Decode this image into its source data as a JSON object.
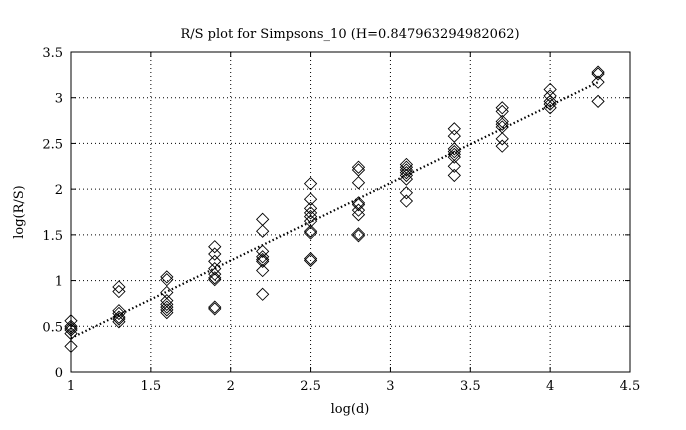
{
  "chart_data": {
    "type": "scatter",
    "title": "R/S plot for Simpsons_10 (H=0.847963294982062)",
    "xlabel": "log(d)",
    "ylabel": "log(R/S)",
    "xlim": [
      1,
      4.5
    ],
    "ylim": [
      0,
      3.5
    ],
    "xticks": [
      "1",
      "1.5",
      "2",
      "2.5",
      "3",
      "3.5",
      "4",
      "4.5"
    ],
    "yticks": [
      "0",
      "0.5",
      "1",
      "1.5",
      "2",
      "2.5",
      "3",
      "3.5"
    ],
    "grid": true,
    "marker": "diamond",
    "fit_line": {
      "style": "dotted",
      "x": [
        1,
        4.3
      ],
      "y": [
        0.37,
        3.17
      ]
    },
    "series": [
      {
        "points": [
          [
            1.0,
            0.56
          ],
          [
            1.0,
            0.5
          ],
          [
            1.0,
            0.48
          ],
          [
            1.0,
            0.46
          ],
          [
            1.0,
            0.42
          ],
          [
            1.0,
            0.28
          ],
          [
            1.3,
            0.93
          ],
          [
            1.3,
            0.88
          ],
          [
            1.3,
            0.67
          ],
          [
            1.3,
            0.64
          ],
          [
            1.3,
            0.6
          ],
          [
            1.3,
            0.58
          ],
          [
            1.3,
            0.55
          ],
          [
            1.6,
            1.04
          ],
          [
            1.6,
            1.01
          ],
          [
            1.6,
            0.87
          ],
          [
            1.6,
            0.78
          ],
          [
            1.6,
            0.74
          ],
          [
            1.6,
            0.71
          ],
          [
            1.6,
            0.68
          ],
          [
            1.6,
            0.65
          ],
          [
            1.9,
            1.37
          ],
          [
            1.9,
            1.29
          ],
          [
            1.9,
            1.21
          ],
          [
            1.9,
            1.13
          ],
          [
            1.9,
            1.07
          ],
          [
            1.9,
            1.03
          ],
          [
            1.9,
            1.01
          ],
          [
            1.9,
            0.71
          ],
          [
            1.9,
            0.69
          ],
          [
            2.2,
            1.67
          ],
          [
            2.2,
            1.54
          ],
          [
            2.2,
            1.32
          ],
          [
            2.2,
            1.26
          ],
          [
            2.2,
            1.23
          ],
          [
            2.2,
            1.21
          ],
          [
            2.2,
            1.11
          ],
          [
            2.2,
            0.85
          ],
          [
            2.5,
            2.06
          ],
          [
            2.5,
            1.89
          ],
          [
            2.5,
            1.79
          ],
          [
            2.5,
            1.74
          ],
          [
            2.5,
            1.7
          ],
          [
            2.5,
            1.65
          ],
          [
            2.5,
            1.54
          ],
          [
            2.5,
            1.52
          ],
          [
            2.5,
            1.24
          ],
          [
            2.5,
            1.22
          ],
          [
            2.8,
            2.24
          ],
          [
            2.8,
            2.21
          ],
          [
            2.8,
            2.07
          ],
          [
            2.8,
            1.85
          ],
          [
            2.8,
            1.83
          ],
          [
            2.8,
            1.77
          ],
          [
            2.8,
            1.72
          ],
          [
            2.8,
            1.51
          ],
          [
            2.8,
            1.49
          ],
          [
            3.1,
            2.27
          ],
          [
            3.1,
            2.24
          ],
          [
            3.1,
            2.21
          ],
          [
            3.1,
            2.18
          ],
          [
            3.1,
            2.15
          ],
          [
            3.1,
            2.11
          ],
          [
            3.1,
            1.96
          ],
          [
            3.1,
            1.87
          ],
          [
            3.4,
            2.66
          ],
          [
            3.4,
            2.58
          ],
          [
            3.4,
            2.44
          ],
          [
            3.4,
            2.41
          ],
          [
            3.4,
            2.38
          ],
          [
            3.4,
            2.35
          ],
          [
            3.4,
            2.25
          ],
          [
            3.4,
            2.15
          ],
          [
            3.7,
            2.89
          ],
          [
            3.7,
            2.85
          ],
          [
            3.7,
            2.74
          ],
          [
            3.7,
            2.71
          ],
          [
            3.7,
            2.68
          ],
          [
            3.7,
            2.55
          ],
          [
            3.7,
            2.47
          ],
          [
            4.0,
            3.09
          ],
          [
            4.0,
            3.02
          ],
          [
            4.0,
            2.96
          ],
          [
            4.0,
            2.93
          ],
          [
            4.0,
            2.89
          ],
          [
            4.3,
            3.28
          ],
          [
            4.3,
            3.26
          ],
          [
            4.3,
            3.17
          ],
          [
            4.3,
            2.96
          ]
        ]
      }
    ]
  }
}
